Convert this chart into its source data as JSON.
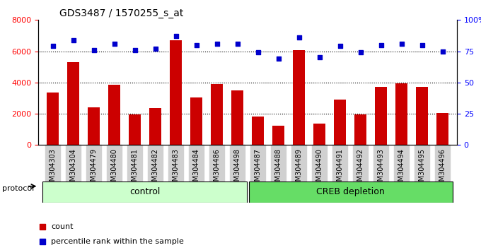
{
  "title": "GDS3487 / 1570255_s_at",
  "samples": [
    "GSM304303",
    "GSM304304",
    "GSM304479",
    "GSM304480",
    "GSM304481",
    "GSM304482",
    "GSM304483",
    "GSM304484",
    "GSM304486",
    "GSM304498",
    "GSM304487",
    "GSM304488",
    "GSM304489",
    "GSM304490",
    "GSM304491",
    "GSM304492",
    "GSM304493",
    "GSM304494",
    "GSM304495",
    "GSM304496"
  ],
  "counts": [
    3350,
    5300,
    2400,
    3850,
    1950,
    2350,
    6700,
    3050,
    3900,
    3500,
    1800,
    1250,
    6050,
    1350,
    2900,
    1950,
    3700,
    3950,
    3700,
    2050
  ],
  "percentiles": [
    79,
    84,
    76,
    81,
    76,
    77,
    87,
    80,
    81,
    81,
    74,
    69,
    86,
    70,
    79,
    74,
    80,
    81,
    80,
    75
  ],
  "control_count": 10,
  "creb_count": 10,
  "bar_color": "#cc0000",
  "dot_color": "#0000cc",
  "control_bg": "#ccffcc",
  "creb_bg": "#66dd66",
  "ylim_left": [
    0,
    8000
  ],
  "ylim_right": [
    0,
    100
  ],
  "yticks_left": [
    0,
    2000,
    4000,
    6000,
    8000
  ],
  "yticks_right": [
    0,
    25,
    50,
    75,
    100
  ],
  "legend_items": [
    "count",
    "percentile rank within the sample"
  ],
  "protocol_label": "protocol",
  "control_label": "control",
  "creb_label": "CREB depletion"
}
